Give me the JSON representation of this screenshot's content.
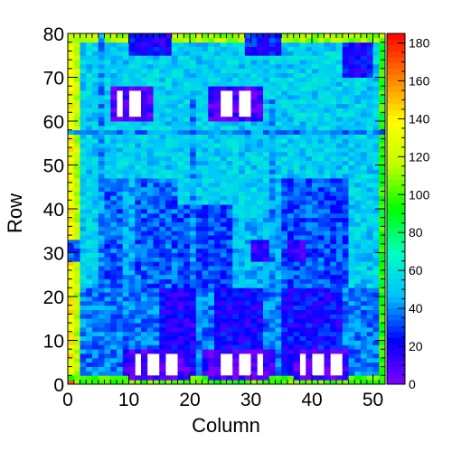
{
  "chart_data": {
    "type": "heatmap",
    "title": "",
    "xlabel": "Column",
    "ylabel": "Row",
    "xlim": [
      0,
      52
    ],
    "ylim": [
      0,
      80
    ],
    "zlim": [
      0,
      185
    ],
    "x_ticks": [
      0,
      10,
      20,
      30,
      40,
      50
    ],
    "y_ticks": [
      0,
      10,
      20,
      30,
      40,
      50,
      60,
      70,
      80
    ],
    "z_ticks": [
      0,
      20,
      40,
      60,
      80,
      100,
      120,
      140,
      160,
      180
    ],
    "x_tick_labels": [
      "0",
      "10",
      "20",
      "30",
      "40",
      "50"
    ],
    "y_tick_labels": [
      "0",
      "10",
      "20",
      "30",
      "40",
      "50",
      "60",
      "70",
      "80"
    ],
    "z_tick_labels": [
      "0",
      "20",
      "40",
      "60",
      "80",
      "100",
      "120",
      "140",
      "160",
      "180"
    ],
    "colormap": [
      "#8000ff",
      "#0000ff",
      "#00c0ff",
      "#00ffc0",
      "#00ff00",
      "#c0ff00",
      "#ffff00",
      "#ff8000",
      "#ff0000"
    ],
    "grid": false,
    "empty_regions": [
      {
        "x": [
          8,
          13
        ],
        "y": [
          61,
          67
        ]
      },
      {
        "x": [
          24,
          31
        ],
        "y": [
          61,
          67
        ]
      },
      {
        "x": [
          11,
          19
        ],
        "y": [
          2,
          7
        ]
      },
      {
        "x": [
          24,
          32
        ],
        "y": [
          2,
          7
        ]
      },
      {
        "x": [
          38,
          45
        ],
        "y": [
          2,
          7
        ]
      }
    ],
    "regions": [
      {
        "x": [
          0,
          52
        ],
        "y": [
          0,
          80
        ],
        "value": 52
      },
      {
        "x": [
          0,
          52
        ],
        "y": [
          0,
          22
        ],
        "value": 38
      },
      {
        "x": [
          5,
          18
        ],
        "y": [
          22,
          47
        ],
        "value": 34
      },
      {
        "x": [
          18,
          27
        ],
        "y": [
          22,
          41
        ],
        "value": 30
      },
      {
        "x": [
          27,
          35
        ],
        "y": [
          22,
          38
        ],
        "value": 48
      },
      {
        "x": [
          35,
          46
        ],
        "y": [
          22,
          47
        ],
        "value": 32
      },
      {
        "x": [
          15,
          21
        ],
        "y": [
          0,
          22
        ],
        "value": 18
      },
      {
        "x": [
          24,
          32
        ],
        "y": [
          0,
          22
        ],
        "value": 20
      },
      {
        "x": [
          35,
          45
        ],
        "y": [
          0,
          22
        ],
        "value": 22
      },
      {
        "x": [
          9,
          16
        ],
        "y": [
          0,
          8
        ],
        "value": 14
      },
      {
        "x": [
          22,
          34
        ],
        "y": [
          0,
          8
        ],
        "value": 14
      },
      {
        "x": [
          36,
          46
        ],
        "y": [
          0,
          8
        ],
        "value": 14
      },
      {
        "x": [
          0,
          2
        ],
        "y": [
          0,
          80
        ],
        "value": 118
      },
      {
        "x": [
          0,
          1
        ],
        "y": [
          0,
          80
        ],
        "value": 138
      },
      {
        "x": [
          51,
          52
        ],
        "y": [
          0,
          80
        ],
        "value": 95
      },
      {
        "x": [
          0,
          52
        ],
        "y": [
          0,
          2
        ],
        "value": 100
      },
      {
        "x": [
          0,
          52
        ],
        "y": [
          78,
          80
        ],
        "value": 112
      },
      {
        "x": [
          0,
          52
        ],
        "y": [
          57,
          58
        ],
        "value": 40
      },
      {
        "x": [
          7,
          14
        ],
        "y": [
          60,
          68
        ],
        "value": 8
      },
      {
        "x": [
          23,
          32
        ],
        "y": [
          60,
          68
        ],
        "value": 8
      },
      {
        "x": [
          10,
          20
        ],
        "y": [
          1,
          8
        ],
        "value": 8
      },
      {
        "x": [
          23,
          33
        ],
        "y": [
          1,
          8
        ],
        "value": 8
      },
      {
        "x": [
          37,
          46
        ],
        "y": [
          1,
          8
        ],
        "value": 8
      },
      {
        "x": [
          10,
          17
        ],
        "y": [
          75,
          80
        ],
        "value": 20
      },
      {
        "x": [
          29,
          35
        ],
        "y": [
          75,
          80
        ],
        "value": 25
      },
      {
        "x": [
          45,
          50
        ],
        "y": [
          70,
          78
        ],
        "value": 20
      },
      {
        "x": [
          9,
          11
        ],
        "y": [
          22,
          47
        ],
        "value": 45
      },
      {
        "x": [
          5,
          6
        ],
        "y": [
          22,
          80
        ],
        "value": 40
      },
      {
        "x": [
          20,
          21
        ],
        "y": [
          22,
          65
        ],
        "value": 40
      },
      {
        "x": [
          33,
          34
        ],
        "y": [
          22,
          65
        ],
        "value": 40
      },
      {
        "x": [
          0,
          2
        ],
        "y": [
          28,
          33
        ],
        "value": 30
      },
      {
        "x": [
          30,
          33
        ],
        "y": [
          28,
          33
        ],
        "value": 15
      },
      {
        "x": [
          36,
          39
        ],
        "y": [
          28,
          33
        ],
        "value": 15
      },
      {
        "x": [
          0,
          1
        ],
        "y": [
          0,
          1
        ],
        "value": 180
      },
      {
        "x": [
          51,
          52
        ],
        "y": [
          79,
          80
        ],
        "value": 130
      }
    ]
  }
}
